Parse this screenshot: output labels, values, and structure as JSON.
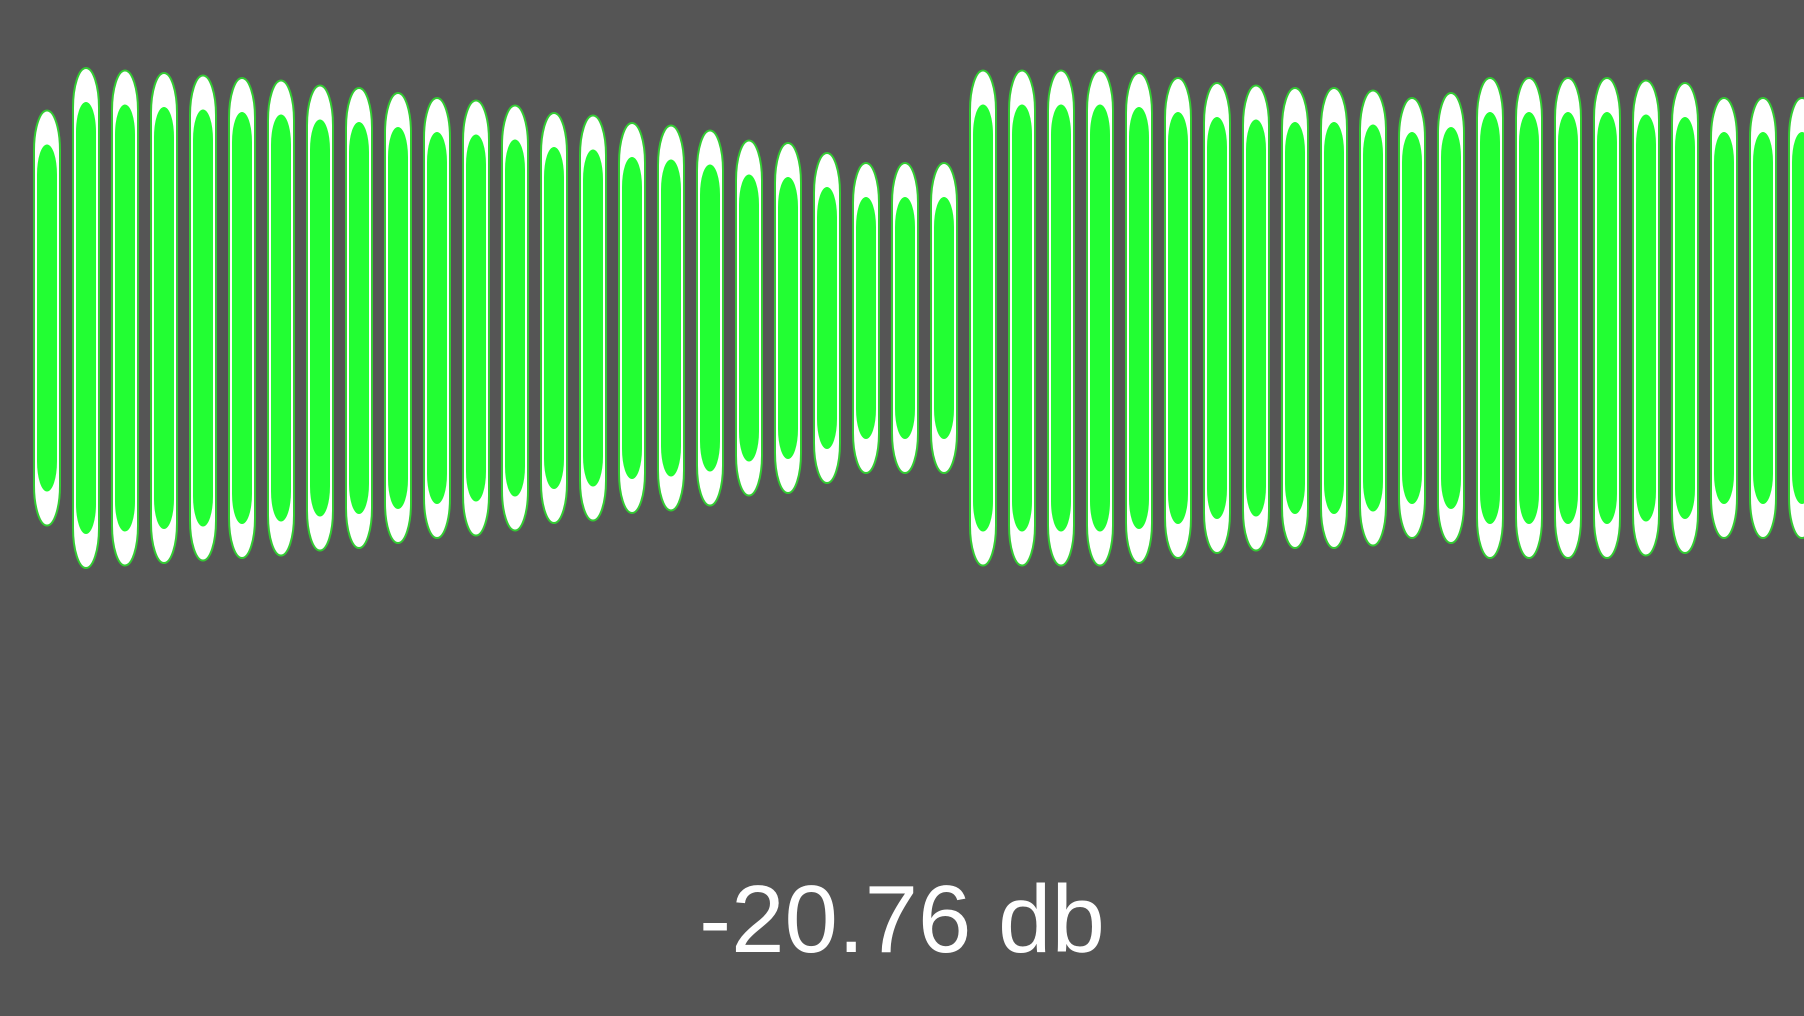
{
  "readout": {
    "value": "-20.76",
    "unit": "db"
  },
  "colors": {
    "background": "#555555",
    "bar_fill": "#22ff33",
    "bar_cap": "#ffffff",
    "bar_outline": "#33cc33"
  },
  "meter": {
    "levels": [
      0.83,
      1.0,
      0.99,
      0.98,
      0.97,
      0.96,
      0.95,
      0.93,
      0.92,
      0.9,
      0.88,
      0.87,
      0.85,
      0.82,
      0.81,
      0.78,
      0.77,
      0.75,
      0.71,
      0.7,
      0.66,
      0.62,
      0.62,
      0.62,
      0.99,
      0.99,
      0.99,
      0.99,
      0.98,
      0.96,
      0.94,
      0.93,
      0.92,
      0.92,
      0.91,
      0.88,
      0.9,
      0.96,
      0.96,
      0.96,
      0.96,
      0.95,
      0.94,
      0.88,
      0.88,
      0.88
    ],
    "peaks": [
      0.83,
      1.0,
      0.99,
      0.98,
      0.97,
      0.96,
      0.95,
      0.93,
      0.92,
      0.9,
      0.88,
      0.87,
      0.85,
      0.82,
      0.81,
      0.78,
      0.77,
      0.75,
      0.71,
      0.7,
      0.66,
      0.62,
      0.62,
      0.62,
      0.99,
      0.99,
      0.99,
      0.99,
      0.98,
      0.96,
      0.94,
      0.93,
      0.92,
      0.92,
      0.91,
      0.88,
      0.9,
      0.96,
      0.96,
      0.96,
      0.96,
      0.95,
      0.94,
      0.88,
      0.88,
      0.88
    ]
  }
}
